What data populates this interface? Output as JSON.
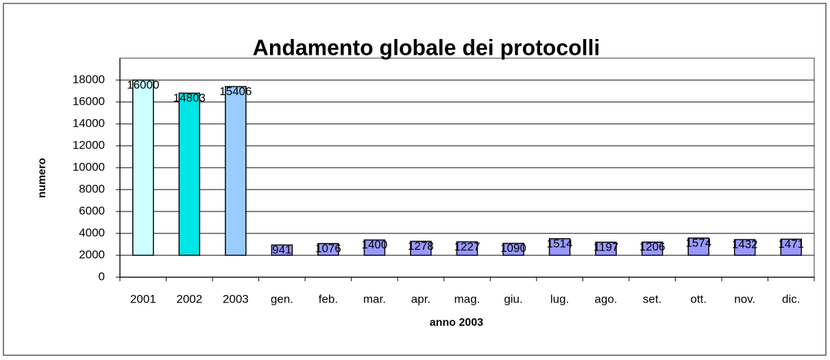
{
  "chart_data": {
    "type": "bar",
    "title": "Andamento globale dei protocolli",
    "x_label": "anno 2003",
    "y_label": "numero",
    "categories": [
      "2001",
      "2002",
      "2003",
      "gen.",
      "feb.",
      "mar.",
      "apr.",
      "mag.",
      "giu.",
      "lug.",
      "ago.",
      "set.",
      "ott.",
      "nov.",
      "dic."
    ],
    "values": [
      16000,
      14803,
      15406,
      941,
      1076,
      1400,
      1278,
      1227,
      1090,
      1514,
      1197,
      1206,
      1574,
      1432,
      1471
    ],
    "colors": [
      "#ccffff",
      "#00e5e5",
      "#99ccff",
      "#9999ff",
      "#9999ff",
      "#9999ff",
      "#9999ff",
      "#9999ff",
      "#9999ff",
      "#9999ff",
      "#9999ff",
      "#9999ff",
      "#9999ff",
      "#9999ff",
      "#9999ff"
    ],
    "bar_base": 2000,
    "ylim": [
      0,
      20000
    ],
    "yticks": [
      0,
      2000,
      4000,
      6000,
      8000,
      10000,
      12000,
      14000,
      16000,
      18000
    ],
    "grid": true
  }
}
